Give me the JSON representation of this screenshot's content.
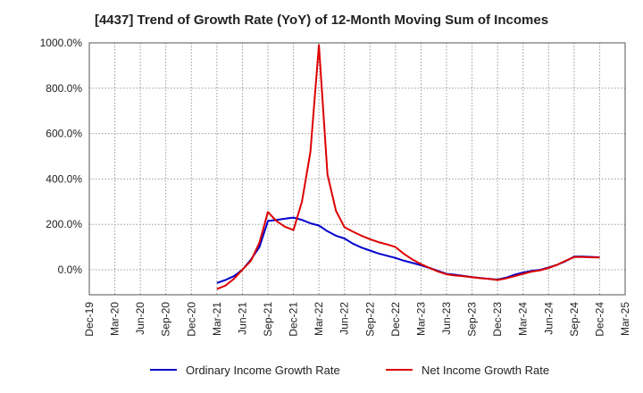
{
  "chart_data": {
    "type": "line",
    "title": "[4437]  Trend of Growth Rate (YoY) of 12-Month Moving Sum of Incomes",
    "xlabel": "",
    "ylabel": "",
    "ylim": [
      -110,
      1000
    ],
    "y_ticks": [
      0,
      200,
      400,
      600,
      800,
      1000
    ],
    "y_tick_labels": [
      "0.0%",
      "200.0%",
      "400.0%",
      "600.0%",
      "800.0%",
      "1000.0%"
    ],
    "x_tick_labels": [
      "Dec-19",
      "Mar-20",
      "Jun-20",
      "Sep-20",
      "Dec-20",
      "Mar-21",
      "Jun-21",
      "Sep-21",
      "Dec-21",
      "Mar-22",
      "Jun-22",
      "Sep-22",
      "Dec-22",
      "Mar-23",
      "Jun-23",
      "Sep-23",
      "Dec-23",
      "Mar-24",
      "Jun-24",
      "Sep-24",
      "Dec-24",
      "Mar-25"
    ],
    "x_start": "2019-12",
    "x_end": "2025-03",
    "grid": true,
    "legend_position": "bottom",
    "series": [
      {
        "name": "Ordinary Income Growth Rate",
        "color": "#0000cc",
        "points": [
          [
            "2021-03",
            -58
          ],
          [
            "2021-04",
            -45
          ],
          [
            "2021-05",
            -28
          ],
          [
            "2021-06",
            0
          ],
          [
            "2021-07",
            45
          ],
          [
            "2021-08",
            100
          ],
          [
            "2021-09",
            215
          ],
          [
            "2021-10",
            220
          ],
          [
            "2021-11",
            225
          ],
          [
            "2021-12",
            230
          ],
          [
            "2022-01",
            220
          ],
          [
            "2022-02",
            205
          ],
          [
            "2022-03",
            195
          ],
          [
            "2022-04",
            170
          ],
          [
            "2022-05",
            150
          ],
          [
            "2022-06",
            138
          ],
          [
            "2022-07",
            115
          ],
          [
            "2022-08",
            98
          ],
          [
            "2022-09",
            85
          ],
          [
            "2022-10",
            72
          ],
          [
            "2022-11",
            62
          ],
          [
            "2022-12",
            52
          ],
          [
            "2023-01",
            40
          ],
          [
            "2023-02",
            30
          ],
          [
            "2023-03",
            20
          ],
          [
            "2023-04",
            8
          ],
          [
            "2023-05",
            -5
          ],
          [
            "2023-06",
            -18
          ],
          [
            "2023-07",
            -22
          ],
          [
            "2023-08",
            -27
          ],
          [
            "2023-09",
            -32
          ],
          [
            "2023-10",
            -36
          ],
          [
            "2023-11",
            -40
          ],
          [
            "2023-12",
            -43
          ],
          [
            "2024-01",
            -35
          ],
          [
            "2024-02",
            -22
          ],
          [
            "2024-03",
            -12
          ],
          [
            "2024-04",
            -5
          ],
          [
            "2024-05",
            0
          ],
          [
            "2024-06",
            10
          ],
          [
            "2024-07",
            22
          ],
          [
            "2024-08",
            38
          ],
          [
            "2024-09",
            58
          ],
          [
            "2024-10",
            58
          ],
          [
            "2024-11",
            57
          ],
          [
            "2024-12",
            55
          ]
        ]
      },
      {
        "name": "Net Income Growth Rate",
        "color": "#dd0000",
        "points": [
          [
            "2021-03",
            -85
          ],
          [
            "2021-04",
            -70
          ],
          [
            "2021-05",
            -40
          ],
          [
            "2021-06",
            0
          ],
          [
            "2021-07",
            40
          ],
          [
            "2021-08",
            120
          ],
          [
            "2021-09",
            255
          ],
          [
            "2021-10",
            215
          ],
          [
            "2021-11",
            190
          ],
          [
            "2021-12",
            175
          ],
          [
            "2022-01",
            300
          ],
          [
            "2022-02",
            520
          ],
          [
            "2022-03",
            990
          ],
          [
            "2022-04",
            420
          ],
          [
            "2022-05",
            260
          ],
          [
            "2022-06",
            188
          ],
          [
            "2022-07",
            168
          ],
          [
            "2022-08",
            150
          ],
          [
            "2022-09",
            135
          ],
          [
            "2022-10",
            122
          ],
          [
            "2022-11",
            112
          ],
          [
            "2022-12",
            100
          ],
          [
            "2023-01",
            70
          ],
          [
            "2023-02",
            45
          ],
          [
            "2023-03",
            25
          ],
          [
            "2023-04",
            8
          ],
          [
            "2023-05",
            -8
          ],
          [
            "2023-06",
            -20
          ],
          [
            "2023-07",
            -25
          ],
          [
            "2023-08",
            -28
          ],
          [
            "2023-09",
            -33
          ],
          [
            "2023-10",
            -37
          ],
          [
            "2023-11",
            -40
          ],
          [
            "2023-12",
            -45
          ],
          [
            "2024-01",
            -38
          ],
          [
            "2024-02",
            -28
          ],
          [
            "2024-03",
            -18
          ],
          [
            "2024-04",
            -8
          ],
          [
            "2024-05",
            -2
          ],
          [
            "2024-06",
            8
          ],
          [
            "2024-07",
            22
          ],
          [
            "2024-08",
            40
          ],
          [
            "2024-09",
            56
          ],
          [
            "2024-10",
            56
          ],
          [
            "2024-11",
            55
          ],
          [
            "2024-12",
            54
          ]
        ]
      }
    ]
  }
}
